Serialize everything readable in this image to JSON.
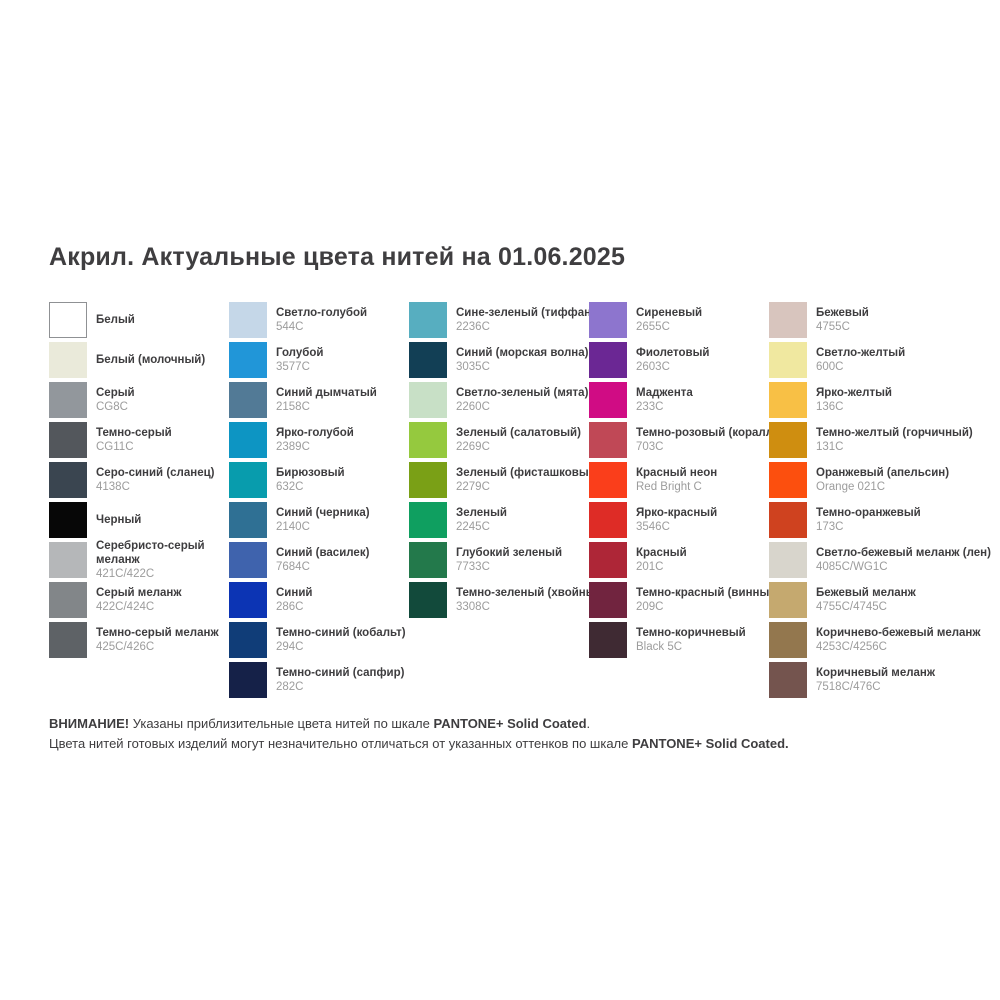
{
  "title": "Акрил. Актуальные цвета нитей на 01.06.2025",
  "columns": [
    {
      "items": [
        {
          "name": "Белый",
          "code": "",
          "color": "#ffffff",
          "border": true
        },
        {
          "name": "Белый (молочный)",
          "code": "",
          "color": "#eaeada"
        },
        {
          "name": "Серый",
          "code": "CG8C",
          "color": "#92979c"
        },
        {
          "name": "Темно-серый",
          "code": "CG11C",
          "color": "#53575c"
        },
        {
          "name": "Серо-синий (сланец)",
          "code": "4138C",
          "color": "#3a4550"
        },
        {
          "name": "Черный",
          "code": "",
          "color": "#070707"
        },
        {
          "name": "Серебристо-серый\nмеланж",
          "code": "421C/422C",
          "color": "#b5b7b9"
        },
        {
          "name": "Серый меланж",
          "code": "422C/424C",
          "color": "#828689"
        },
        {
          "name": "Темно-серый меланж",
          "code": "425C/426C",
          "color": "#5e6266"
        }
      ]
    },
    {
      "items": [
        {
          "name": "Светло-голубой",
          "code": "544C",
          "color": "#c5d7e8"
        },
        {
          "name": "Голубой",
          "code": "3577C",
          "color": "#2196d8"
        },
        {
          "name": "Синий дымчатый",
          "code": "2158C",
          "color": "#527a96"
        },
        {
          "name": "Ярко-голубой",
          "code": "2389C",
          "color": "#0d95c3"
        },
        {
          "name": "Бирюзовый",
          "code": "632C",
          "color": "#089cad"
        },
        {
          "name": "Синий (черника)",
          "code": "2140C",
          "color": "#2f7094"
        },
        {
          "name": "Синий (василек)",
          "code": "7684C",
          "color": "#3f63ad"
        },
        {
          "name": "Синий",
          "code": "286C",
          "color": "#0c34b4"
        },
        {
          "name": "Темно-синий (кобальт)",
          "code": "294C",
          "color": "#103d78"
        },
        {
          "name": "Темно-синий (сапфир)",
          "code": "282C",
          "color": "#152148"
        }
      ]
    },
    {
      "items": [
        {
          "name": "Сине-зеленый (тиффани)",
          "code": "2236C",
          "color": "#57aec0"
        },
        {
          "name": "Синий (морская волна)",
          "code": "3035C",
          "color": "#123f55"
        },
        {
          "name": "Светло-зеленый (мята)",
          "code": "2260C",
          "color": "#c8e0c6"
        },
        {
          "name": "Зеленый (салатовый)",
          "code": "2269C",
          "color": "#95c93e"
        },
        {
          "name": "Зеленый (фисташковый)",
          "code": "2279C",
          "color": "#7aa016"
        },
        {
          "name": "Зеленый",
          "code": "2245C",
          "color": "#0f9f60"
        },
        {
          "name": "Глубокий зеленый",
          "code": "7733C",
          "color": "#23794b"
        },
        {
          "name": "Темно-зеленый (хвойный)",
          "code": "3308C",
          "color": "#124a3b"
        }
      ]
    },
    {
      "items": [
        {
          "name": "Сиреневый",
          "code": "2655C",
          "color": "#8d75ce"
        },
        {
          "name": "Фиолетовый",
          "code": "2603C",
          "color": "#6b2794"
        },
        {
          "name": "Маджента",
          "code": "233C",
          "color": "#d00c84"
        },
        {
          "name": "Темно-розовый (коралл)",
          "code": "703C",
          "color": "#c04856"
        },
        {
          "name": "Красный неон",
          "code": "Red Bright C",
          "color": "#fa3e1b"
        },
        {
          "name": "Ярко-красный",
          "code": "3546C",
          "color": "#de2c26"
        },
        {
          "name": "Красный",
          "code": "201C",
          "color": "#ae2637"
        },
        {
          "name": "Темно-красный (винный)",
          "code": "209C",
          "color": "#71243f"
        },
        {
          "name": "Темно-коричневый",
          "code": "Black 5C",
          "color": "#3f2a33"
        }
      ]
    },
    {
      "items": [
        {
          "name": "Бежевый",
          "code": "4755C",
          "color": "#d8c5be"
        },
        {
          "name": "Светло-желтый",
          "code": "600C",
          "color": "#f0e8a0"
        },
        {
          "name": "Ярко-желтый",
          "code": "136C",
          "color": "#f8c045"
        },
        {
          "name": "Темно-желтый (горчичный)",
          "code": "131C",
          "color": "#cf8e10"
        },
        {
          "name": "Оранжевый (апельсин)",
          "code": "Orange 021C",
          "color": "#fc4f0e"
        },
        {
          "name": "Темно-оранжевый",
          "code": "173C",
          "color": "#cf421f"
        },
        {
          "name": "Светло-бежевый меланж (лен)",
          "code": "4085C/WG1C",
          "color": "#d8d5cc"
        },
        {
          "name": "Бежевый меланж",
          "code": "4755C/4745C",
          "color": "#c5a96f"
        },
        {
          "name": "Коричнево-бежевый меланж",
          "code": "4253C/4256C",
          "color": "#93774e"
        },
        {
          "name": "Коричневый меланж",
          "code": "7518C/476C",
          "color": "#74544e"
        }
      ]
    }
  ],
  "footer": {
    "line1": [
      {
        "text": "ВНИМАНИЕ!",
        "bold": true
      },
      {
        "text": " Указаны приблизительные цвета нитей по шкале ",
        "bold": false
      },
      {
        "text": "PANTONE+ Solid Coated",
        "bold": true
      },
      {
        "text": ".",
        "bold": false
      }
    ],
    "line2": [
      {
        "text": "Цвета нитей готовых изделий могут незначительно отличаться от указанных оттенков по шкале ",
        "bold": false
      },
      {
        "text": "PANTONE+ Solid Coated.",
        "bold": true
      }
    ]
  }
}
